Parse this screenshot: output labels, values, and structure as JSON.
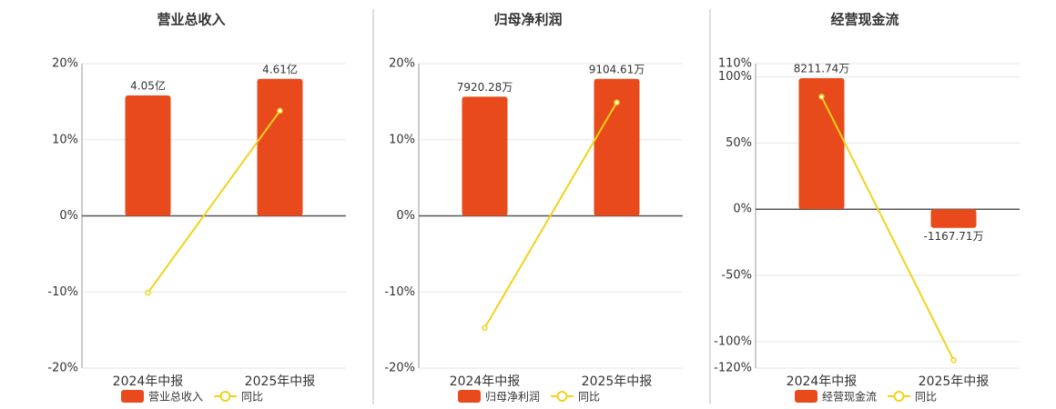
{
  "chart_data": [
    {
      "type": "bar",
      "title": "营业总收入",
      "categories": [
        "2024年中报",
        "2025年中报"
      ],
      "series": [
        {
          "name": "营业总收入",
          "type": "bar",
          "color": "#e84a1b",
          "values": [
            4.05,
            4.61
          ],
          "value_labels": [
            "4.05亿",
            "4.61亿"
          ]
        },
        {
          "name": "同比",
          "type": "line",
          "color": "#f2d21b",
          "values": [
            -10.1,
            13.8
          ]
        }
      ],
      "ylim": [
        -20,
        20
      ],
      "yticks": [
        {
          "value": -20,
          "label": "-20%"
        },
        {
          "value": -10,
          "label": "-10%"
        },
        {
          "value": 0,
          "label": "0%"
        },
        {
          "value": 10,
          "label": "10%"
        },
        {
          "value": 20,
          "label": "20%"
        }
      ],
      "grid": true
    },
    {
      "type": "bar",
      "title": "归母净利润",
      "categories": [
        "2024年中报",
        "2025年中报"
      ],
      "series": [
        {
          "name": "归母净利润",
          "type": "bar",
          "color": "#e84a1b",
          "values": [
            7920.28,
            9104.61
          ],
          "value_labels": [
            "7920.28万",
            "9104.61万"
          ]
        },
        {
          "name": "同比",
          "type": "line",
          "color": "#f2d21b",
          "values": [
            -14.7,
            14.9
          ]
        }
      ],
      "ylim": [
        -20,
        20
      ],
      "yticks": [
        {
          "value": -20,
          "label": "-20%"
        },
        {
          "value": -10,
          "label": "-10%"
        },
        {
          "value": 0,
          "label": "0%"
        },
        {
          "value": 10,
          "label": "10%"
        },
        {
          "value": 20,
          "label": "20%"
        }
      ],
      "grid": true
    },
    {
      "type": "bar",
      "title": "经营现金流",
      "categories": [
        "2024年中报",
        "2025年中报"
      ],
      "series": [
        {
          "name": "经营现金流",
          "type": "bar",
          "color": "#e84a1b",
          "values": [
            8211.74,
            -1167.71
          ],
          "value_labels": [
            "8211.74万",
            "-1167.71万"
          ]
        },
        {
          "name": "同比",
          "type": "line",
          "color": "#f2d21b",
          "values": [
            85,
            -114
          ]
        }
      ],
      "ylim": [
        -120,
        110
      ],
      "yticks": [
        {
          "value": -120,
          "label": "-120%"
        },
        {
          "value": -100,
          "label": "-100%"
        },
        {
          "value": -50,
          "label": "-50%"
        },
        {
          "value": 0,
          "label": "0%"
        },
        {
          "value": 50,
          "label": "50%"
        },
        {
          "value": 100,
          "label": "100%"
        },
        {
          "value": 110,
          "label": "110%"
        }
      ],
      "grid": true
    }
  ]
}
